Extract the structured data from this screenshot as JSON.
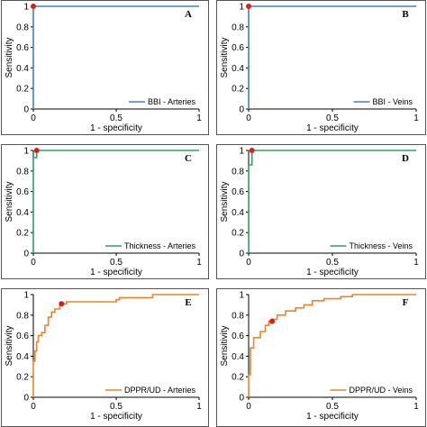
{
  "figure": {
    "background": "#ffffff",
    "panel_border": "#555555"
  },
  "chart_data": [
    {
      "type": "line",
      "panel_label": "A",
      "xlabel": "1 - specificity",
      "ylabel": "Sensitivity",
      "xlim": [
        0,
        1
      ],
      "ylim": [
        0,
        1
      ],
      "xticks": [
        "0",
        "0.5",
        "1"
      ],
      "yticks": [
        "0",
        "0.2",
        "0.4",
        "0.6",
        "0.8",
        "1"
      ],
      "legend_position": "bottom-right",
      "grid": false,
      "series": [
        {
          "name": "BBI - Arteries",
          "color": "#4a7fb5",
          "x": [
            0,
            0,
            1
          ],
          "y": [
            0,
            1,
            1
          ]
        }
      ],
      "cutoff_point": {
        "x": 0.0,
        "y": 1.0,
        "color": "#d62020"
      }
    },
    {
      "type": "line",
      "panel_label": "B",
      "xlabel": "1 - specificity",
      "ylabel": "Sensitivity",
      "xlim": [
        0,
        1
      ],
      "ylim": [
        0,
        1
      ],
      "xticks": [
        "0",
        "0.5",
        "1"
      ],
      "yticks": [
        "0",
        "0.2",
        "0.4",
        "0.6",
        "0.8",
        "1"
      ],
      "legend_position": "bottom-right",
      "grid": false,
      "series": [
        {
          "name": "BBI - Veins",
          "color": "#4a7fb5",
          "x": [
            0,
            0,
            1
          ],
          "y": [
            0,
            1,
            1
          ]
        }
      ],
      "cutoff_point": {
        "x": 0.0,
        "y": 1.0,
        "color": "#d62020"
      }
    },
    {
      "type": "line",
      "panel_label": "C",
      "xlabel": "1 - specificity",
      "ylabel": "Sensitivity",
      "xlim": [
        0,
        1
      ],
      "ylim": [
        0,
        1
      ],
      "xticks": [
        "0",
        "0.5",
        "1"
      ],
      "yticks": [
        "0",
        "0.2",
        "0.4",
        "0.6",
        "0.8",
        "1"
      ],
      "legend_position": "bottom-right",
      "grid": false,
      "series": [
        {
          "name": "Thickness - Arteries",
          "color": "#2e9e6b",
          "x": [
            0,
            0,
            0.02,
            0.02,
            1
          ],
          "y": [
            0,
            0.93,
            0.93,
            1,
            1
          ]
        }
      ],
      "cutoff_point": {
        "x": 0.02,
        "y": 1.0,
        "color": "#d62020"
      }
    },
    {
      "type": "line",
      "panel_label": "D",
      "xlabel": "1 - specificity",
      "ylabel": "Sensitivity",
      "xlim": [
        0,
        1
      ],
      "ylim": [
        0,
        1
      ],
      "xticks": [
        "0",
        "0.5",
        "1"
      ],
      "yticks": [
        "0",
        "0.2",
        "0.4",
        "0.6",
        "0.8",
        "1"
      ],
      "legend_position": "bottom-right",
      "grid": false,
      "series": [
        {
          "name": "Thickness - Veins",
          "color": "#2e9e6b",
          "x": [
            0,
            0,
            0.02,
            0.02,
            1
          ],
          "y": [
            0,
            0.86,
            0.86,
            1,
            1
          ]
        }
      ],
      "cutoff_point": {
        "x": 0.02,
        "y": 1.0,
        "color": "#d62020"
      }
    },
    {
      "type": "line",
      "panel_label": "E",
      "xlabel": "1 - specificity",
      "ylabel": "Sensitivity",
      "xlim": [
        0,
        1
      ],
      "ylim": [
        0,
        1
      ],
      "xticks": [
        "0",
        "0.5",
        "1"
      ],
      "yticks": [
        "0",
        "0.2",
        "0.4",
        "0.6",
        "0.8",
        "1"
      ],
      "legend_position": "bottom-right",
      "grid": false,
      "series": [
        {
          "name": "DPPR/UD - Arteries",
          "color": "#e8862a",
          "x": [
            0,
            0,
            0.01,
            0.01,
            0.02,
            0.02,
            0.03,
            0.03,
            0.05,
            0.05,
            0.07,
            0.07,
            0.09,
            0.09,
            0.11,
            0.11,
            0.13,
            0.13,
            0.16,
            0.16,
            0.2,
            0.2,
            0.5,
            0.5,
            0.52,
            0.52,
            0.72,
            0.72,
            1
          ],
          "y": [
            0,
            0.35,
            0.35,
            0.45,
            0.45,
            0.54,
            0.54,
            0.6,
            0.6,
            0.63,
            0.63,
            0.7,
            0.7,
            0.78,
            0.78,
            0.83,
            0.83,
            0.86,
            0.86,
            0.91,
            0.91,
            0.93,
            0.93,
            0.95,
            0.95,
            0.97,
            0.97,
            1,
            1
          ]
        }
      ],
      "cutoff_point": {
        "x": 0.17,
        "y": 0.91,
        "color": "#d62020"
      }
    },
    {
      "type": "line",
      "panel_label": "F",
      "xlabel": "1 - specificity",
      "ylabel": "Sensitivity",
      "xlim": [
        0,
        1
      ],
      "ylim": [
        0,
        1
      ],
      "xticks": [
        "0",
        "0.5",
        "1"
      ],
      "yticks": [
        "0",
        "0.2",
        "0.4",
        "0.6",
        "0.8",
        "1"
      ],
      "legend_position": "bottom-right",
      "grid": false,
      "series": [
        {
          "name": "DPPR/UD - Veins",
          "color": "#e8862a",
          "x": [
            0,
            0,
            0.01,
            0.01,
            0.03,
            0.03,
            0.07,
            0.07,
            0.1,
            0.1,
            0.12,
            0.12,
            0.14,
            0.14,
            0.17,
            0.17,
            0.22,
            0.22,
            0.28,
            0.28,
            0.33,
            0.33,
            0.38,
            0.38,
            0.45,
            0.45,
            0.55,
            0.55,
            0.62,
            0.62,
            0.72,
            0.72,
            1
          ],
          "y": [
            0,
            0.22,
            0.22,
            0.48,
            0.48,
            0.58,
            0.58,
            0.64,
            0.64,
            0.7,
            0.7,
            0.74,
            0.74,
            0.76,
            0.76,
            0.8,
            0.8,
            0.84,
            0.84,
            0.87,
            0.87,
            0.9,
            0.9,
            0.94,
            0.94,
            0.96,
            0.96,
            0.98,
            0.98,
            1,
            1,
            1,
            1
          ]
        }
      ],
      "cutoff_point": {
        "x": 0.14,
        "y": 0.74,
        "color": "#d62020"
      }
    }
  ]
}
